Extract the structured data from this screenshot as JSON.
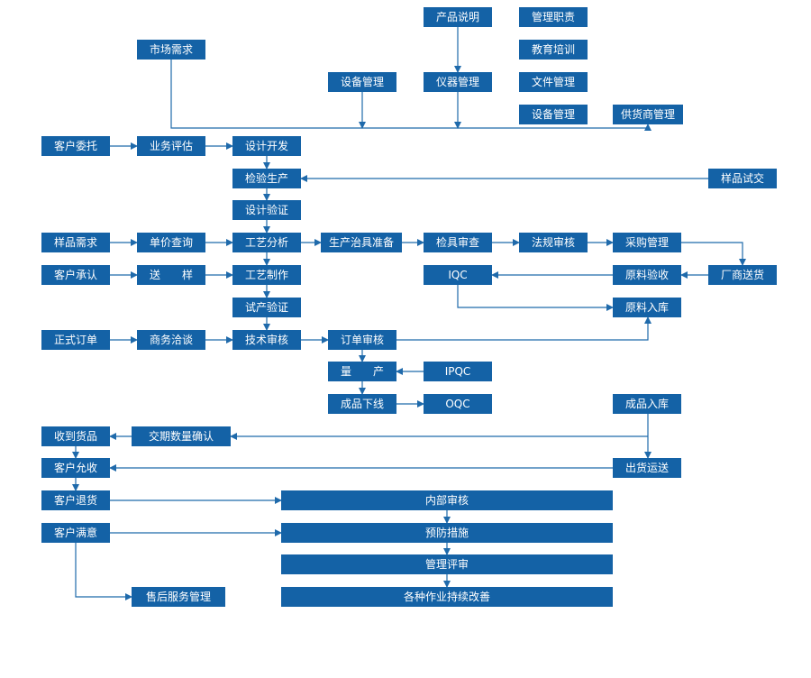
{
  "nodes": [
    {
      "label": "产品说明"
    },
    {
      "label": "管理职责"
    },
    {
      "label": "教育培训"
    },
    {
      "label": "文件管理"
    },
    {
      "label": "设备管理"
    },
    {
      "label": "市场需求"
    },
    {
      "label": "设备管理"
    },
    {
      "label": "仪器管理"
    },
    {
      "label": "供货商管理"
    },
    {
      "label": "客户委托"
    },
    {
      "label": "业务评估"
    },
    {
      "label": "设计开发"
    },
    {
      "label": "检验生产"
    },
    {
      "label": "样品试交"
    },
    {
      "label": "设计验证"
    },
    {
      "label": "样品需求"
    },
    {
      "label": "单价查询"
    },
    {
      "label": "工艺分析"
    },
    {
      "label": "生产治具准备"
    },
    {
      "label": "检具审查"
    },
    {
      "label": "法规审核"
    },
    {
      "label": "采购管理"
    },
    {
      "label": "客户承认"
    },
    {
      "label": "送　　样"
    },
    {
      "label": "工艺制作"
    },
    {
      "label": "IQC"
    },
    {
      "label": "原料验收"
    },
    {
      "label": "厂商送货"
    },
    {
      "label": "试产验证"
    },
    {
      "label": "原料入库"
    },
    {
      "label": "正式订单"
    },
    {
      "label": "商务洽谈"
    },
    {
      "label": "技术审核"
    },
    {
      "label": "订单审核"
    },
    {
      "label": "量　　产"
    },
    {
      "label": "IPQC"
    },
    {
      "label": "成品下线"
    },
    {
      "label": "OQC"
    },
    {
      "label": "成品入库"
    },
    {
      "label": "收到货品"
    },
    {
      "label": "交期数量确认"
    },
    {
      "label": "客户允收"
    },
    {
      "label": "出货运送"
    },
    {
      "label": "客户退货"
    },
    {
      "label": "内部审核"
    },
    {
      "label": "客户满意"
    },
    {
      "label": "预防措施"
    },
    {
      "label": "管理评审"
    },
    {
      "label": "各种作业持续改善"
    },
    {
      "label": "售后服务管理"
    }
  ]
}
